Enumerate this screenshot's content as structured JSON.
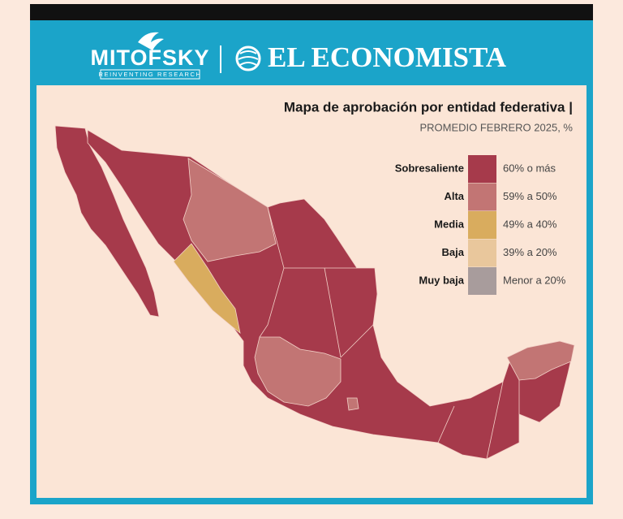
{
  "header": {
    "brand_left": "MITOFSKY",
    "brand_left_tagline": "REINVENTING RESEARCH",
    "brand_right": "EL ECONOMISTA"
  },
  "title": "Mapa de aprobación por entidad federativa |",
  "subtitle": "PROMEDIO FEBRERO 2025, %",
  "legend": [
    {
      "label": "Sobresaliente",
      "range": "60% o más",
      "color": "#a63a4b"
    },
    {
      "label": "Alta",
      "range": "59% a 50%",
      "color": "#c27574"
    },
    {
      "label": "Media",
      "range": "49% a 40%",
      "color": "#d9ac5e"
    },
    {
      "label": "Baja",
      "range": "39% a 20%",
      "color": "#e9c79c"
    },
    {
      "label": "Muy baja",
      "range": "Menor a 20%",
      "color": "#a89c9c"
    }
  ]
}
